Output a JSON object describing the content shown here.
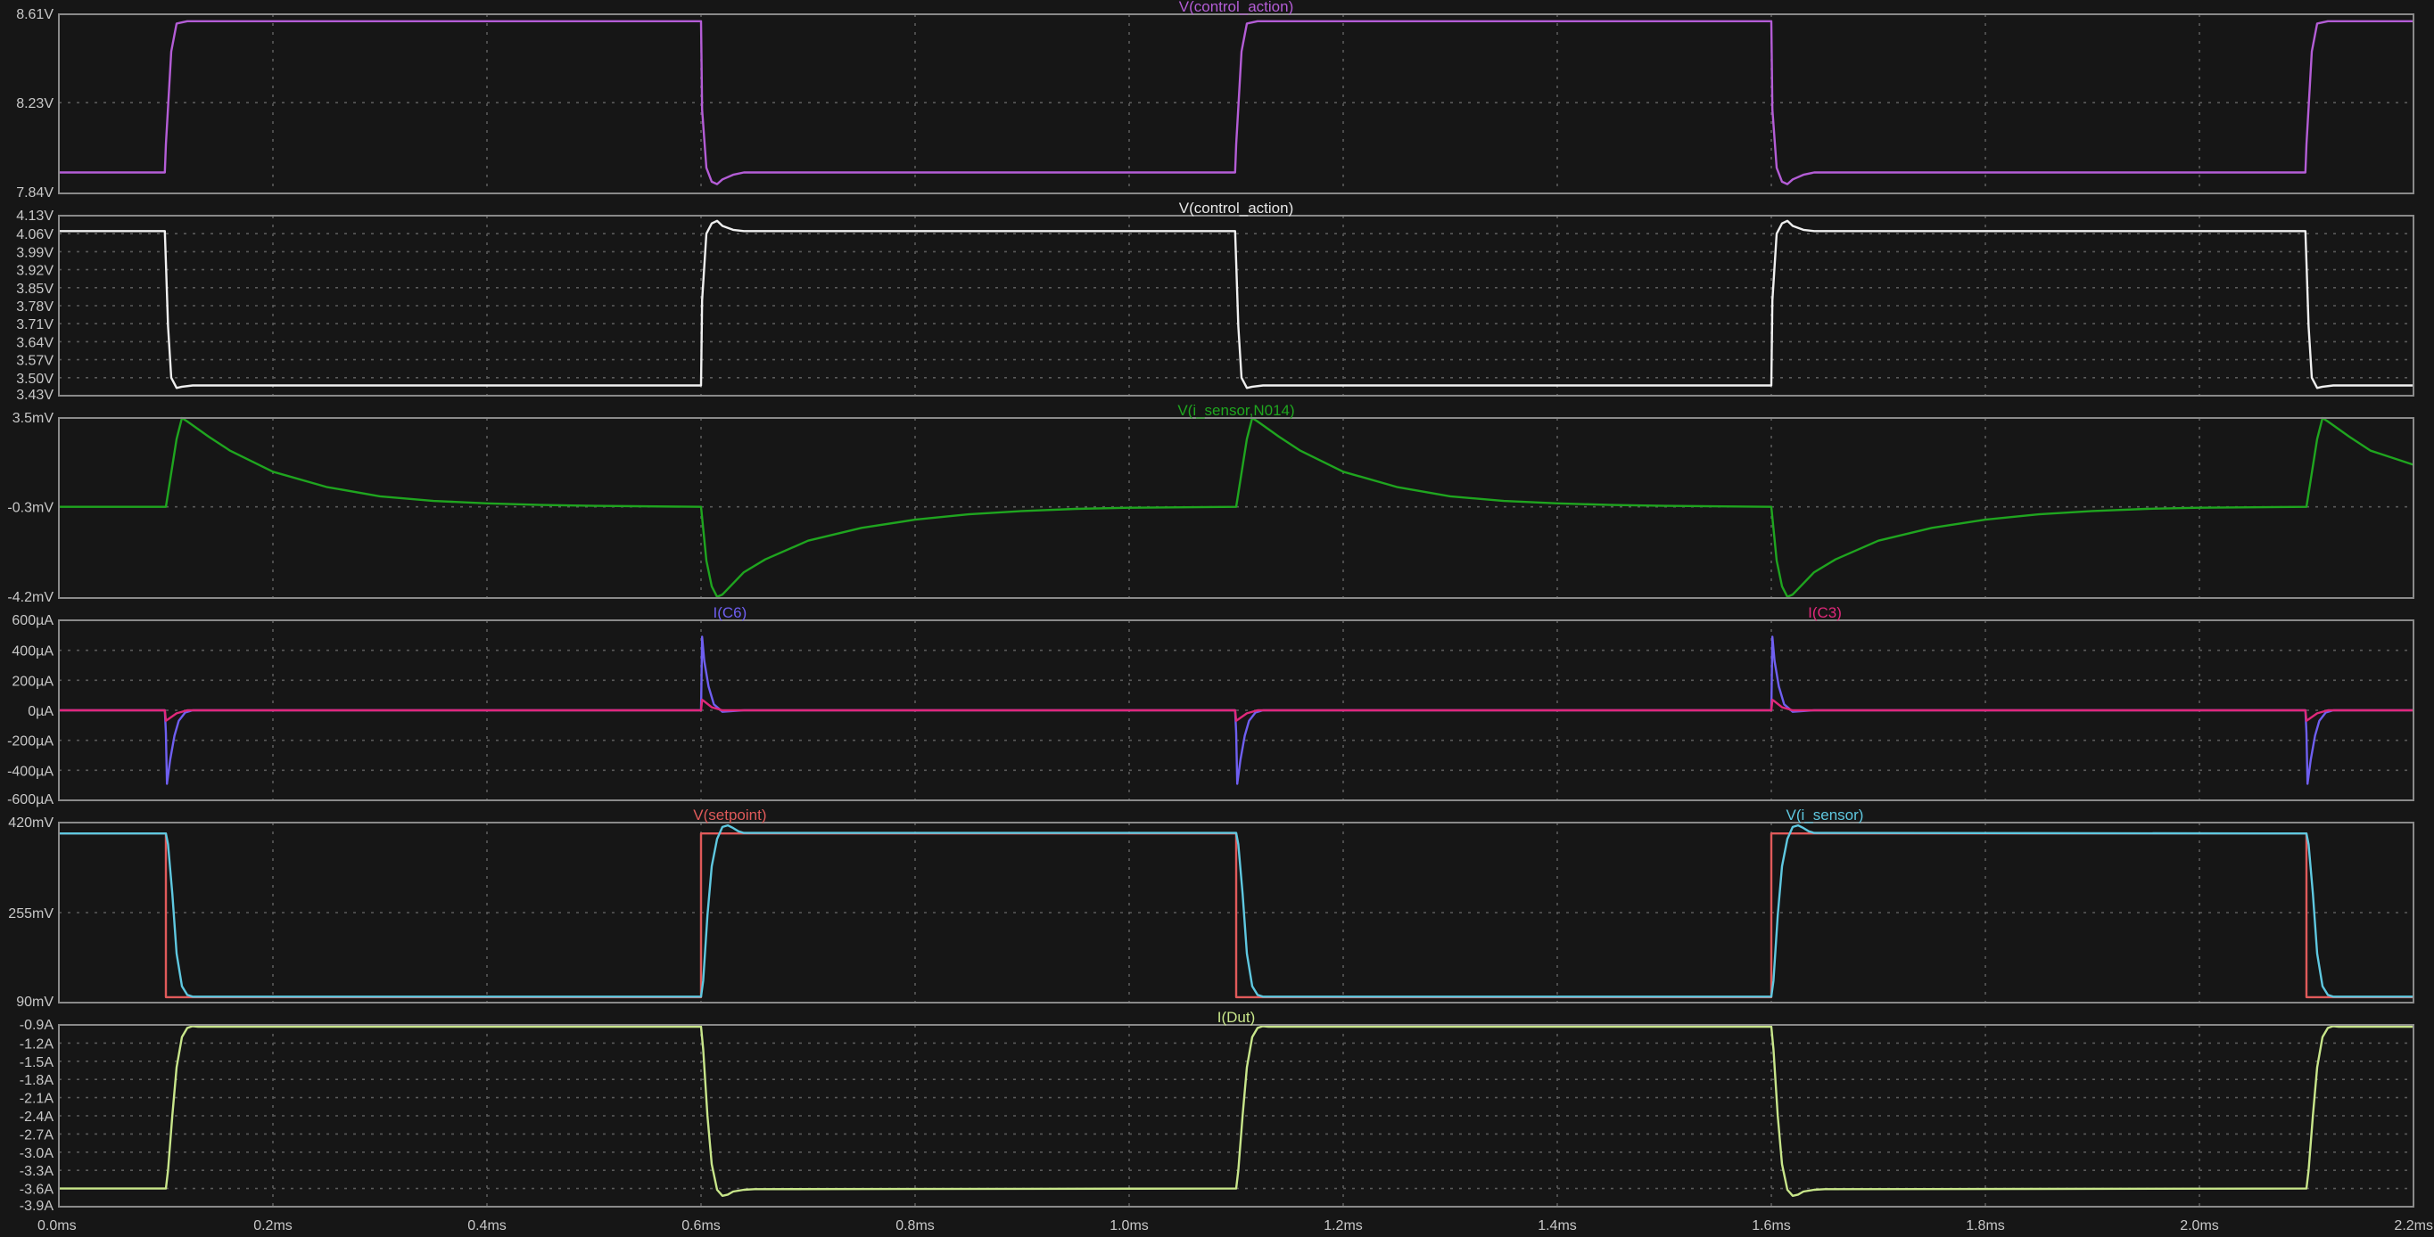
{
  "chart_data": {
    "type": "line",
    "x_axis": {
      "unit": "ms",
      "range": [
        0,
        2.2
      ],
      "ticks": [
        0,
        0.2,
        0.4,
        0.6,
        0.8,
        1.0,
        1.2,
        1.4,
        1.6,
        1.8,
        2.0,
        2.2
      ],
      "tick_labels": [
        "0.0ms",
        "0.2ms",
        "0.4ms",
        "0.6ms",
        "0.8ms",
        "1.0ms",
        "1.2ms",
        "1.4ms",
        "1.6ms",
        "1.8ms",
        "2.0ms",
        "2.2ms"
      ]
    },
    "grid": true,
    "panes": [
      {
        "id": "pane1",
        "titles": [
          {
            "text": "V(control_action)",
            "color": "#b45dd6",
            "align": "center"
          }
        ],
        "ylim": [
          7.84,
          8.61
        ],
        "y_ticks": [
          {
            "value": 8.61,
            "label": "8.61V"
          },
          {
            "value": 8.23,
            "label": "8.23V"
          },
          {
            "value": 7.84,
            "label": "7.84V"
          }
        ],
        "tick_label_color": "#c77de8",
        "series": [
          {
            "name": "V(control_action)",
            "color": "#b45dd6",
            "x": [
              0,
              0.099,
              0.1,
              0.105,
              0.11,
              0.12,
              0.6,
              0.601,
              0.605,
              0.61,
              0.615,
              0.62,
              0.63,
              0.64,
              0.65,
              1.099,
              1.1,
              1.105,
              1.11,
              1.12,
              1.6,
              1.601,
              1.605,
              1.61,
              1.615,
              1.62,
              1.63,
              1.64,
              1.65,
              2.099,
              2.1,
              2.105,
              2.11,
              2.12,
              2.2
            ],
            "y": [
              7.93,
              7.93,
              8.05,
              8.45,
              8.57,
              8.58,
              8.58,
              8.2,
              7.95,
              7.89,
              7.88,
              7.9,
              7.92,
              7.93,
              7.93,
              7.93,
              8.05,
              8.45,
              8.57,
              8.58,
              8.58,
              8.2,
              7.95,
              7.89,
              7.88,
              7.9,
              7.92,
              7.93,
              7.93,
              7.93,
              8.05,
              8.45,
              8.57,
              8.58,
              8.58
            ]
          }
        ]
      },
      {
        "id": "pane2",
        "titles": [
          {
            "text": "V(control_action)",
            "color": "#e8e8e8",
            "align": "center"
          }
        ],
        "ylim": [
          3.43,
          4.13
        ],
        "y_ticks": [
          {
            "value": 4.13,
            "label": "4.13V"
          },
          {
            "value": 4.06,
            "label": "4.06V"
          },
          {
            "value": 3.99,
            "label": "3.99V"
          },
          {
            "value": 3.92,
            "label": "3.92V"
          },
          {
            "value": 3.85,
            "label": "3.85V"
          },
          {
            "value": 3.78,
            "label": "3.78V"
          },
          {
            "value": 3.71,
            "label": "3.71V"
          },
          {
            "value": 3.64,
            "label": "3.64V"
          },
          {
            "value": 3.57,
            "label": "3.57V"
          },
          {
            "value": 3.5,
            "label": "3.50V"
          },
          {
            "value": 3.43,
            "label": "3.43V"
          }
        ],
        "tick_label_color": "#c8c8c8",
        "series": [
          {
            "name": "V(control_action)",
            "color": "#f0f0f0",
            "x": [
              0,
              0.099,
              0.1,
              0.102,
              0.105,
              0.11,
              0.115,
              0.125,
              0.6,
              0.601,
              0.605,
              0.61,
              0.615,
              0.62,
              0.63,
              0.64,
              1.099,
              1.1,
              1.102,
              1.105,
              1.11,
              1.115,
              1.125,
              1.6,
              1.601,
              1.605,
              1.61,
              1.615,
              1.62,
              1.63,
              1.64,
              2.099,
              2.1,
              2.102,
              2.105,
              2.11,
              2.115,
              2.125,
              2.2
            ],
            "y": [
              4.07,
              4.07,
              3.95,
              3.7,
              3.5,
              3.46,
              3.465,
              3.47,
              3.47,
              3.8,
              4.06,
              4.1,
              4.11,
              4.09,
              4.075,
              4.07,
              4.07,
              3.95,
              3.7,
              3.5,
              3.46,
              3.465,
              3.47,
              3.47,
              3.8,
              4.06,
              4.1,
              4.11,
              4.09,
              4.075,
              4.07,
              4.07,
              3.95,
              3.7,
              3.5,
              3.46,
              3.465,
              3.47,
              3.47
            ]
          }
        ]
      },
      {
        "id": "pane3",
        "titles": [
          {
            "text": "V(i_sensor,N014)",
            "color": "#1fa51f",
            "align": "center"
          }
        ],
        "ylim": [
          -4.2,
          3.5
        ],
        "y_ticks": [
          {
            "value": 3.5,
            "label": "3.5mV"
          },
          {
            "value": -0.3,
            "label": "-0.3mV"
          },
          {
            "value": -4.2,
            "label": "-4.2mV"
          }
        ],
        "tick_label_color": "#c8c8c8",
        "series": [
          {
            "name": "V(i_sensor,N014)",
            "color": "#1fa51f",
            "x": [
              0,
              0.1,
              0.11,
              0.115,
              0.12,
              0.14,
              0.16,
              0.2,
              0.25,
              0.3,
              0.35,
              0.4,
              0.45,
              0.5,
              0.6,
              0.605,
              0.61,
              0.615,
              0.62,
              0.64,
              0.66,
              0.7,
              0.75,
              0.8,
              0.85,
              0.9,
              0.95,
              1.0,
              1.1,
              1.11,
              1.115,
              1.12,
              1.14,
              1.16,
              1.2,
              1.25,
              1.3,
              1.35,
              1.4,
              1.45,
              1.5,
              1.6,
              1.605,
              1.61,
              1.615,
              1.62,
              1.64,
              1.66,
              1.7,
              1.75,
              1.8,
              1.85,
              1.9,
              1.95,
              2.0,
              2.1,
              2.11,
              2.115,
              2.12,
              2.14,
              2.16,
              2.2
            ],
            "y": [
              -0.3,
              -0.3,
              2.6,
              3.5,
              3.35,
              2.7,
              2.1,
              1.2,
              0.55,
              0.15,
              -0.05,
              -0.15,
              -0.22,
              -0.26,
              -0.3,
              -2.6,
              -3.7,
              -4.15,
              -4.05,
              -3.1,
              -2.55,
              -1.75,
              -1.2,
              -0.85,
              -0.62,
              -0.48,
              -0.39,
              -0.34,
              -0.3,
              2.6,
              3.5,
              3.35,
              2.7,
              2.1,
              1.2,
              0.55,
              0.15,
              -0.05,
              -0.15,
              -0.22,
              -0.26,
              -0.3,
              -2.6,
              -3.7,
              -4.15,
              -4.05,
              -3.1,
              -2.55,
              -1.75,
              -1.2,
              -0.85,
              -0.62,
              -0.48,
              -0.39,
              -0.34,
              -0.3,
              2.6,
              3.5,
              3.35,
              2.7,
              2.1,
              1.5
            ]
          }
        ]
      },
      {
        "id": "pane4",
        "titles": [
          {
            "text": "I(C6)",
            "color": "#6f5ff0",
            "align": "left_of_center"
          },
          {
            "text": "I(C3)",
            "color": "#e0287a",
            "align": "right_of_center"
          }
        ],
        "ylim": [
          -600,
          600
        ],
        "y_ticks": [
          {
            "value": 600,
            "label": "600µA"
          },
          {
            "value": 400,
            "label": "400µA"
          },
          {
            "value": 200,
            "label": "200µA"
          },
          {
            "value": 0,
            "label": "0µA"
          },
          {
            "value": -200,
            "label": "-200µA"
          },
          {
            "value": -400,
            "label": "-400µA"
          },
          {
            "value": -600,
            "label": "-600µA"
          }
        ],
        "tick_label_color": "#c8c8c8",
        "series": [
          {
            "name": "I(C6)",
            "color": "#6f5ff0",
            "x": [
              0,
              0.099,
              0.1,
              0.101,
              0.104,
              0.108,
              0.112,
              0.118,
              0.125,
              0.6,
              0.601,
              0.603,
              0.607,
              0.612,
              0.62,
              0.63,
              0.64,
              1.099,
              1.1,
              1.101,
              1.104,
              1.108,
              1.112,
              1.118,
              1.125,
              1.6,
              1.601,
              1.603,
              1.607,
              1.612,
              1.62,
              1.63,
              1.64,
              2.099,
              2.1,
              2.101,
              2.104,
              2.108,
              2.112,
              2.118,
              2.125,
              2.2
            ],
            "y": [
              0,
              0,
              -150,
              -490,
              -330,
              -170,
              -70,
              -15,
              0,
              0,
              490,
              330,
              160,
              40,
              -10,
              -5,
              0,
              0,
              -150,
              -490,
              -330,
              -170,
              -70,
              -15,
              0,
              0,
              490,
              330,
              160,
              40,
              -10,
              -5,
              0,
              0,
              -150,
              -490,
              -330,
              -170,
              -70,
              -15,
              0,
              0
            ]
          },
          {
            "name": "I(C3)",
            "color": "#e0287a",
            "x": [
              0,
              0.099,
              0.1,
              0.102,
              0.11,
              0.12,
              0.6,
              0.601,
              0.603,
              0.61,
              0.62,
              1.099,
              1.1,
              1.102,
              1.11,
              1.12,
              1.6,
              1.601,
              1.603,
              1.61,
              1.62,
              2.099,
              2.1,
              2.102,
              2.11,
              2.12,
              2.2
            ],
            "y": [
              0,
              0,
              -70,
              -60,
              -20,
              0,
              0,
              70,
              60,
              20,
              0,
              0,
              -70,
              -60,
              -20,
              0,
              0,
              70,
              60,
              20,
              0,
              0,
              -70,
              -60,
              -20,
              0,
              0
            ]
          }
        ]
      },
      {
        "id": "pane5",
        "titles": [
          {
            "text": "V(setpoint)",
            "color": "#e05a5a",
            "align": "left_of_center"
          },
          {
            "text": "V(i_sensor)",
            "color": "#5fc8e0",
            "align": "right_of_center"
          }
        ],
        "ylim": [
          90,
          420
        ],
        "y_ticks": [
          {
            "value": 420,
            "label": "420mV"
          },
          {
            "value": 255,
            "label": "255mV"
          },
          {
            "value": 90,
            "label": "90mV"
          }
        ],
        "tick_label_color": "#c8c8c8",
        "series": [
          {
            "name": "V(setpoint)",
            "color": "#e05a5a",
            "x": [
              0,
              0.1,
              0.1,
              0.6,
              0.6,
              1.1,
              1.1,
              1.6,
              1.6,
              2.1,
              2.1,
              2.2
            ],
            "y": [
              400,
              400,
              100,
              100,
              400,
              400,
              100,
              100,
              400,
              400,
              100,
              100
            ]
          },
          {
            "name": "V(i_sensor)",
            "color": "#5fc8e0",
            "x": [
              0,
              0.1,
              0.102,
              0.106,
              0.11,
              0.115,
              0.12,
              0.125,
              0.6,
              0.602,
              0.606,
              0.61,
              0.615,
              0.62,
              0.625,
              0.63,
              0.635,
              0.64,
              1.1,
              1.102,
              1.106,
              1.11,
              1.115,
              1.12,
              1.125,
              1.6,
              1.602,
              1.606,
              1.61,
              1.615,
              1.62,
              1.625,
              1.63,
              1.635,
              1.64,
              2.1,
              2.102,
              2.106,
              2.11,
              2.115,
              2.12,
              2.125,
              2.2
            ],
            "y": [
              400,
              400,
              380,
              290,
              180,
              120,
              104,
              101,
              101,
              130,
              250,
              340,
              390,
              412,
              415,
              410,
              404,
              401,
              401,
              380,
              290,
              180,
              120,
              104,
              101,
              101,
              130,
              250,
              340,
              390,
              412,
              415,
              410,
              404,
              401,
              400,
              380,
              290,
              180,
              120,
              104,
              101,
              101
            ]
          }
        ]
      },
      {
        "id": "pane6",
        "titles": [
          {
            "text": "I(Dut)",
            "color": "#c8e68a",
            "align": "center"
          }
        ],
        "ylim": [
          -3.9,
          -0.9
        ],
        "y_ticks": [
          {
            "value": -0.9,
            "label": "-0.9A"
          },
          {
            "value": -1.2,
            "label": "-1.2A"
          },
          {
            "value": -1.5,
            "label": "-1.5A"
          },
          {
            "value": -1.8,
            "label": "-1.8A"
          },
          {
            "value": -2.1,
            "label": "-2.1A"
          },
          {
            "value": -2.4,
            "label": "-2.4A"
          },
          {
            "value": -2.7,
            "label": "-2.7A"
          },
          {
            "value": -3.0,
            "label": "-3.0A"
          },
          {
            "value": -3.3,
            "label": "-3.3A"
          },
          {
            "value": -3.6,
            "label": "-3.6A"
          },
          {
            "value": -3.9,
            "label": "-3.9A"
          }
        ],
        "tick_label_color": "#c8c8c8",
        "series": [
          {
            "name": "I(Dut)",
            "color": "#c8e68a",
            "x": [
              0,
              0.1,
              0.102,
              0.106,
              0.11,
              0.115,
              0.12,
              0.125,
              0.13,
              0.6,
              0.602,
              0.606,
              0.61,
              0.615,
              0.62,
              0.625,
              0.63,
              0.64,
              0.65,
              1.1,
              1.102,
              1.106,
              1.11,
              1.115,
              1.12,
              1.125,
              1.13,
              1.6,
              1.602,
              1.606,
              1.61,
              1.615,
              1.62,
              1.625,
              1.63,
              1.64,
              1.65,
              2.1,
              2.102,
              2.106,
              2.11,
              2.115,
              2.12,
              2.125,
              2.13,
              2.2
            ],
            "y": [
              -3.6,
              -3.6,
              -3.3,
              -2.4,
              -1.6,
              -1.1,
              -0.95,
              -0.92,
              -0.93,
              -0.93,
              -1.3,
              -2.4,
              -3.2,
              -3.62,
              -3.72,
              -3.7,
              -3.65,
              -3.62,
              -3.61,
              -3.6,
              -3.3,
              -2.4,
              -1.6,
              -1.1,
              -0.95,
              -0.92,
              -0.93,
              -0.93,
              -1.3,
              -2.4,
              -3.2,
              -3.62,
              -3.72,
              -3.7,
              -3.65,
              -3.62,
              -3.61,
              -3.6,
              -3.3,
              -2.4,
              -1.6,
              -1.1,
              -0.95,
              -0.92,
              -0.93,
              -0.93
            ]
          }
        ]
      }
    ]
  }
}
